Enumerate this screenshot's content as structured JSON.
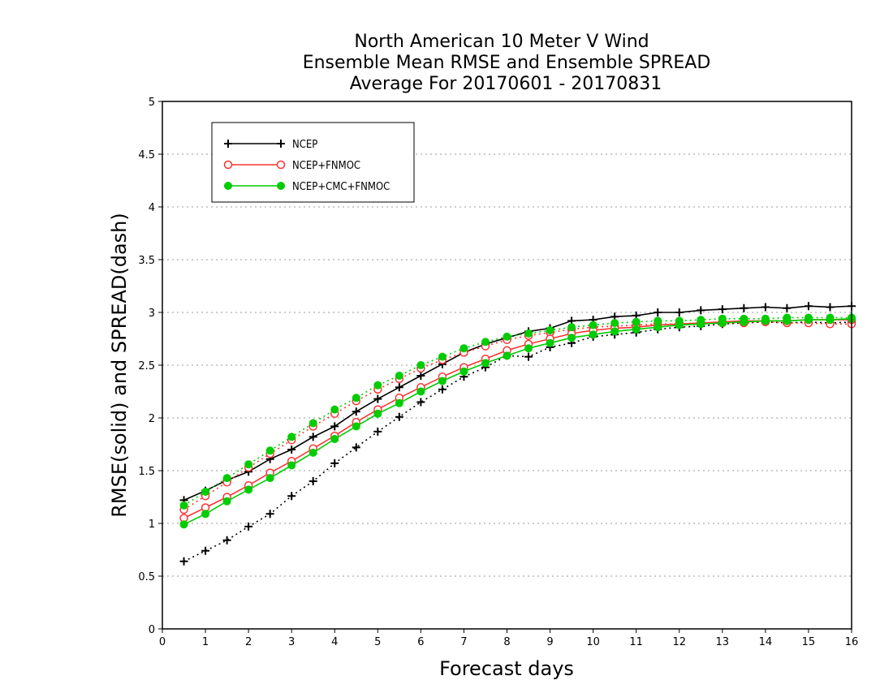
{
  "chart_data": {
    "type": "line",
    "title_lines": [
      "North American 10 Meter V Wind",
      "Ensemble Mean RMSE and Ensemble SPREAD",
      "Average For 20170601 - 20170831"
    ],
    "xlabel": "Forecast days",
    "ylabel": "RMSE(solid) and SPREAD(dash)",
    "xlim": [
      0,
      16
    ],
    "ylim": [
      0,
      5
    ],
    "xticks": [
      "0",
      "1",
      "2",
      "3",
      "4",
      "5",
      "6",
      "7",
      "8",
      "9",
      "10",
      "11",
      "12",
      "13",
      "14",
      "15",
      "16"
    ],
    "yticks": [
      "0",
      "0.5",
      "1",
      "1.5",
      "2",
      "2.5",
      "3",
      "3.5",
      "4",
      "4.5",
      "5"
    ],
    "grid": "horizontal dotted",
    "legend_position": "top-left",
    "x": [
      0.5,
      1,
      1.5,
      2,
      2.5,
      3,
      3.5,
      4,
      4.5,
      5,
      5.5,
      6,
      6.5,
      7,
      7.5,
      8,
      8.5,
      9,
      9.5,
      10,
      10.5,
      11,
      11.5,
      12,
      12.5,
      13,
      13.5,
      14,
      14.5,
      15,
      15.5,
      16
    ],
    "series": [
      {
        "name": "NCEP",
        "color": "#000000",
        "marker": "plus",
        "rmse": [
          1.22,
          1.31,
          1.41,
          1.49,
          1.61,
          1.7,
          1.82,
          1.92,
          2.06,
          2.18,
          2.29,
          2.4,
          2.51,
          2.62,
          2.7,
          2.76,
          2.82,
          2.85,
          2.92,
          2.93,
          2.96,
          2.97,
          3.0,
          3.0,
          3.02,
          3.03,
          3.04,
          3.05,
          3.04,
          3.06,
          3.05,
          3.06
        ],
        "spread": [
          0.64,
          0.74,
          0.84,
          0.97,
          1.09,
          1.26,
          1.4,
          1.57,
          1.72,
          1.87,
          2.01,
          2.15,
          2.27,
          2.39,
          2.48,
          2.59,
          2.58,
          2.67,
          2.71,
          2.77,
          2.79,
          2.81,
          2.84,
          2.86,
          2.87,
          2.89,
          2.9,
          2.91,
          2.9,
          2.91,
          2.9,
          2.91
        ]
      },
      {
        "name": "NCEP+FNMOC",
        "color": "#ff3333",
        "marker": "open-circle",
        "rmse": [
          1.05,
          1.15,
          1.25,
          1.36,
          1.48,
          1.59,
          1.71,
          1.83,
          1.96,
          2.08,
          2.19,
          2.29,
          2.39,
          2.48,
          2.56,
          2.64,
          2.7,
          2.75,
          2.8,
          2.83,
          2.85,
          2.86,
          2.88,
          2.89,
          2.9,
          2.91,
          2.92,
          2.92,
          2.92,
          2.93,
          2.93,
          2.93
        ],
        "spread": [
          1.13,
          1.26,
          1.39,
          1.53,
          1.66,
          1.79,
          1.92,
          2.04,
          2.16,
          2.27,
          2.37,
          2.47,
          2.55,
          2.62,
          2.68,
          2.74,
          2.78,
          2.81,
          2.84,
          2.86,
          2.87,
          2.88,
          2.89,
          2.89,
          2.9,
          2.9,
          2.9,
          2.91,
          2.9,
          2.9,
          2.89,
          2.89
        ]
      },
      {
        "name": "NCEP+CMC+FNMOC",
        "color": "#00cc00",
        "marker": "filled-circle",
        "rmse": [
          0.99,
          1.09,
          1.21,
          1.32,
          1.43,
          1.55,
          1.67,
          1.8,
          1.92,
          2.04,
          2.14,
          2.25,
          2.35,
          2.44,
          2.52,
          2.59,
          2.66,
          2.71,
          2.76,
          2.79,
          2.82,
          2.84,
          2.86,
          2.88,
          2.89,
          2.9,
          2.91,
          2.92,
          2.92,
          2.93,
          2.93,
          2.94
        ],
        "spread": [
          1.17,
          1.3,
          1.43,
          1.56,
          1.69,
          1.82,
          1.95,
          2.08,
          2.19,
          2.31,
          2.4,
          2.5,
          2.58,
          2.66,
          2.72,
          2.77,
          2.8,
          2.83,
          2.86,
          2.88,
          2.9,
          2.91,
          2.92,
          2.92,
          2.93,
          2.94,
          2.94,
          2.94,
          2.95,
          2.95,
          2.95,
          2.95
        ]
      }
    ]
  }
}
